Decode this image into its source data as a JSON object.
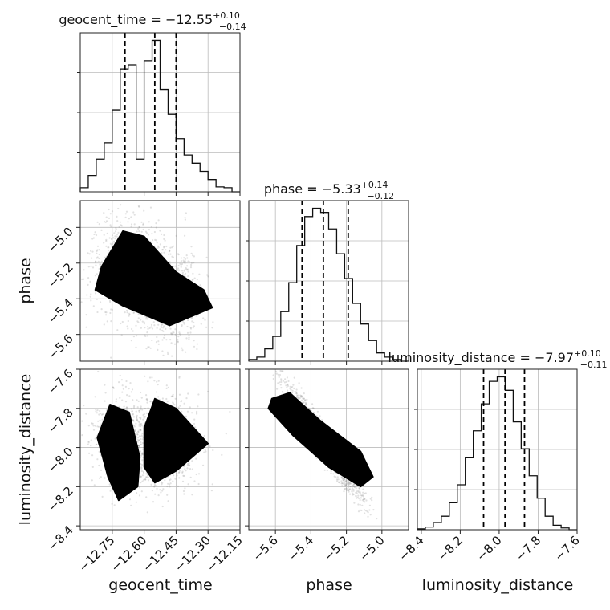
{
  "chart_data": {
    "type": "corner",
    "parameters": [
      "geocent_time",
      "phase",
      "luminosity_distance"
    ],
    "titles": [
      {
        "param": "geocent_time",
        "prefix": "geocent_time = −12.55",
        "plus": "+0.10",
        "minus": "−0.14"
      },
      {
        "param": "phase",
        "prefix": "phase = −5.33",
        "plus": "+0.14",
        "minus": "−0.12"
      },
      {
        "param": "luminosity_distance",
        "prefix": "luminosity_distance = −7.97",
        "plus": "+0.10",
        "minus": "−0.11"
      }
    ],
    "ranges": {
      "geocent_time": [
        -12.9,
        -12.15
      ],
      "phase": [
        -5.75,
        -4.85
      ],
      "luminosity_distance": [
        -8.42,
        -7.6
      ]
    },
    "ticks": {
      "geocent_time": {
        "values": [
          -12.75,
          -12.6,
          -12.45,
          -12.3,
          -12.15
        ],
        "labels": [
          "−12.75",
          "−12.60",
          "−12.45",
          "−12.30",
          "−12.15"
        ]
      },
      "phase": {
        "values": [
          -5.6,
          -5.4,
          -5.2,
          -5.0
        ],
        "labels": [
          "−5.6",
          "−5.4",
          "−5.2",
          "−5.0"
        ]
      },
      "luminosity_distance": {
        "values": [
          -8.4,
          -8.2,
          -8.0,
          -7.8,
          -7.6
        ],
        "labels": [
          "−8.4",
          "−8.2",
          "−8.0",
          "−7.8",
          "−7.6"
        ]
      }
    },
    "quantiles": {
      "geocent_time": [
        -12.69,
        -12.55,
        -12.45
      ],
      "phase": [
        -5.45,
        -5.33,
        -5.19
      ],
      "luminosity_distance": [
        -8.08,
        -7.97,
        -7.87
      ]
    },
    "histograms": {
      "geocent_time": {
        "range": [
          -12.9,
          -12.15
        ],
        "counts": [
          0.5,
          2,
          4,
          6,
          10,
          15,
          15.5,
          4,
          16,
          18.5,
          12.5,
          9.5,
          6.5,
          4.5,
          3.5,
          2.5,
          1.5,
          0.6,
          0.5,
          0
        ]
      },
      "phase": {
        "range": [
          -5.75,
          -4.85
        ],
        "counts": [
          0.2,
          0.5,
          1.5,
          3,
          6,
          9.5,
          14,
          17.5,
          18.5,
          18,
          16,
          13,
          10,
          7,
          4.5,
          2.5,
          1,
          0.5,
          0.2,
          0
        ]
      },
      "luminosity_distance": {
        "range": [
          -8.42,
          -7.6
        ],
        "counts": [
          0.1,
          0.3,
          0.8,
          1.5,
          3,
          5,
          8,
          11,
          14,
          16.5,
          17,
          15.5,
          12,
          9,
          6,
          3.5,
          1.5,
          0.5,
          0.2,
          0
        ]
      }
    },
    "grid": true,
    "xlabels": [
      "geocent_time",
      "phase",
      "luminosity_distance"
    ],
    "ylabels": [
      "",
      "phase",
      "luminosity_distance"
    ]
  }
}
